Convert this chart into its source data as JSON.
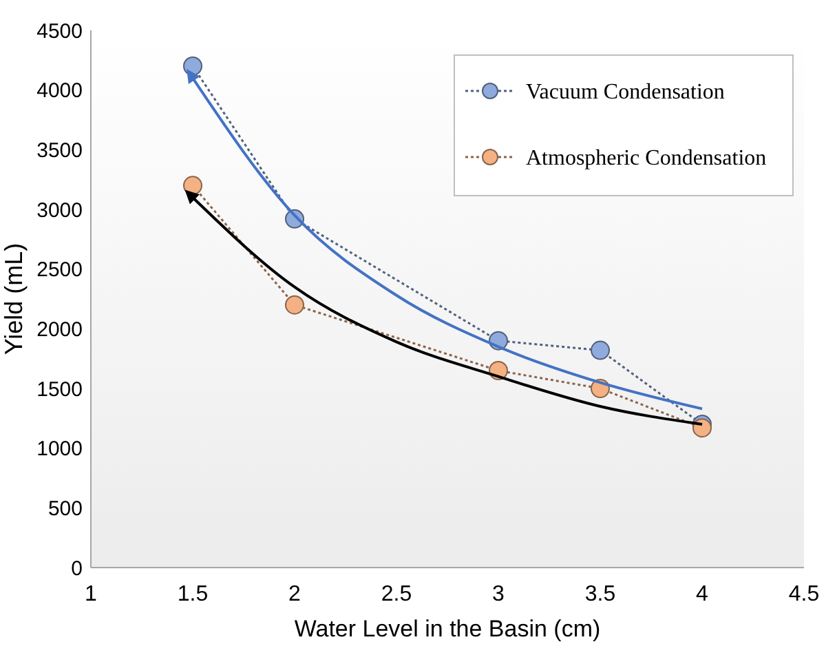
{
  "chart_data": {
    "type": "line",
    "xlabel": "Water Level in the Basin (cm)",
    "ylabel": "Yield (mL)",
    "xlim": [
      1,
      4.5
    ],
    "xticks": [
      1,
      1.5,
      2,
      2.5,
      3,
      3.5,
      4,
      4.5
    ],
    "ylim": [
      0,
      4500
    ],
    "yticks": [
      0,
      500,
      1000,
      1500,
      2000,
      2500,
      3000,
      3500,
      4000,
      4500
    ],
    "grid": false,
    "legend": "top right",
    "x": [
      1.5,
      2,
      3,
      3.5,
      4
    ],
    "series": [
      {
        "name": "Vacuum Condensation",
        "color": "#8faadc",
        "values": [
          4200,
          2920,
          1900,
          1820,
          1200
        ],
        "marker": "circle",
        "line_style": "dotted"
      },
      {
        "name": "Atmospheric Condensation",
        "color": "#f4b183",
        "values": [
          3200,
          2200,
          1650,
          1500,
          1170
        ],
        "marker": "circle",
        "line_style": "dotted"
      },
      {
        "type": "line",
        "color": "#4472c4",
        "x": [
          1.5,
          2,
          2.5,
          3,
          3.5,
          4
        ],
        "values": [
          4100,
          2950,
          2280,
          1850,
          1550,
          1330
        ],
        "marker": "none",
        "line_style": "solid"
      },
      {
        "type": "line",
        "color": "#000000",
        "x": [
          1.5,
          2,
          2.5,
          3,
          3.5,
          4
        ],
        "values": [
          3100,
          2350,
          1890,
          1600,
          1350,
          1200
        ],
        "marker": "none",
        "line_style": "solid"
      }
    ]
  }
}
